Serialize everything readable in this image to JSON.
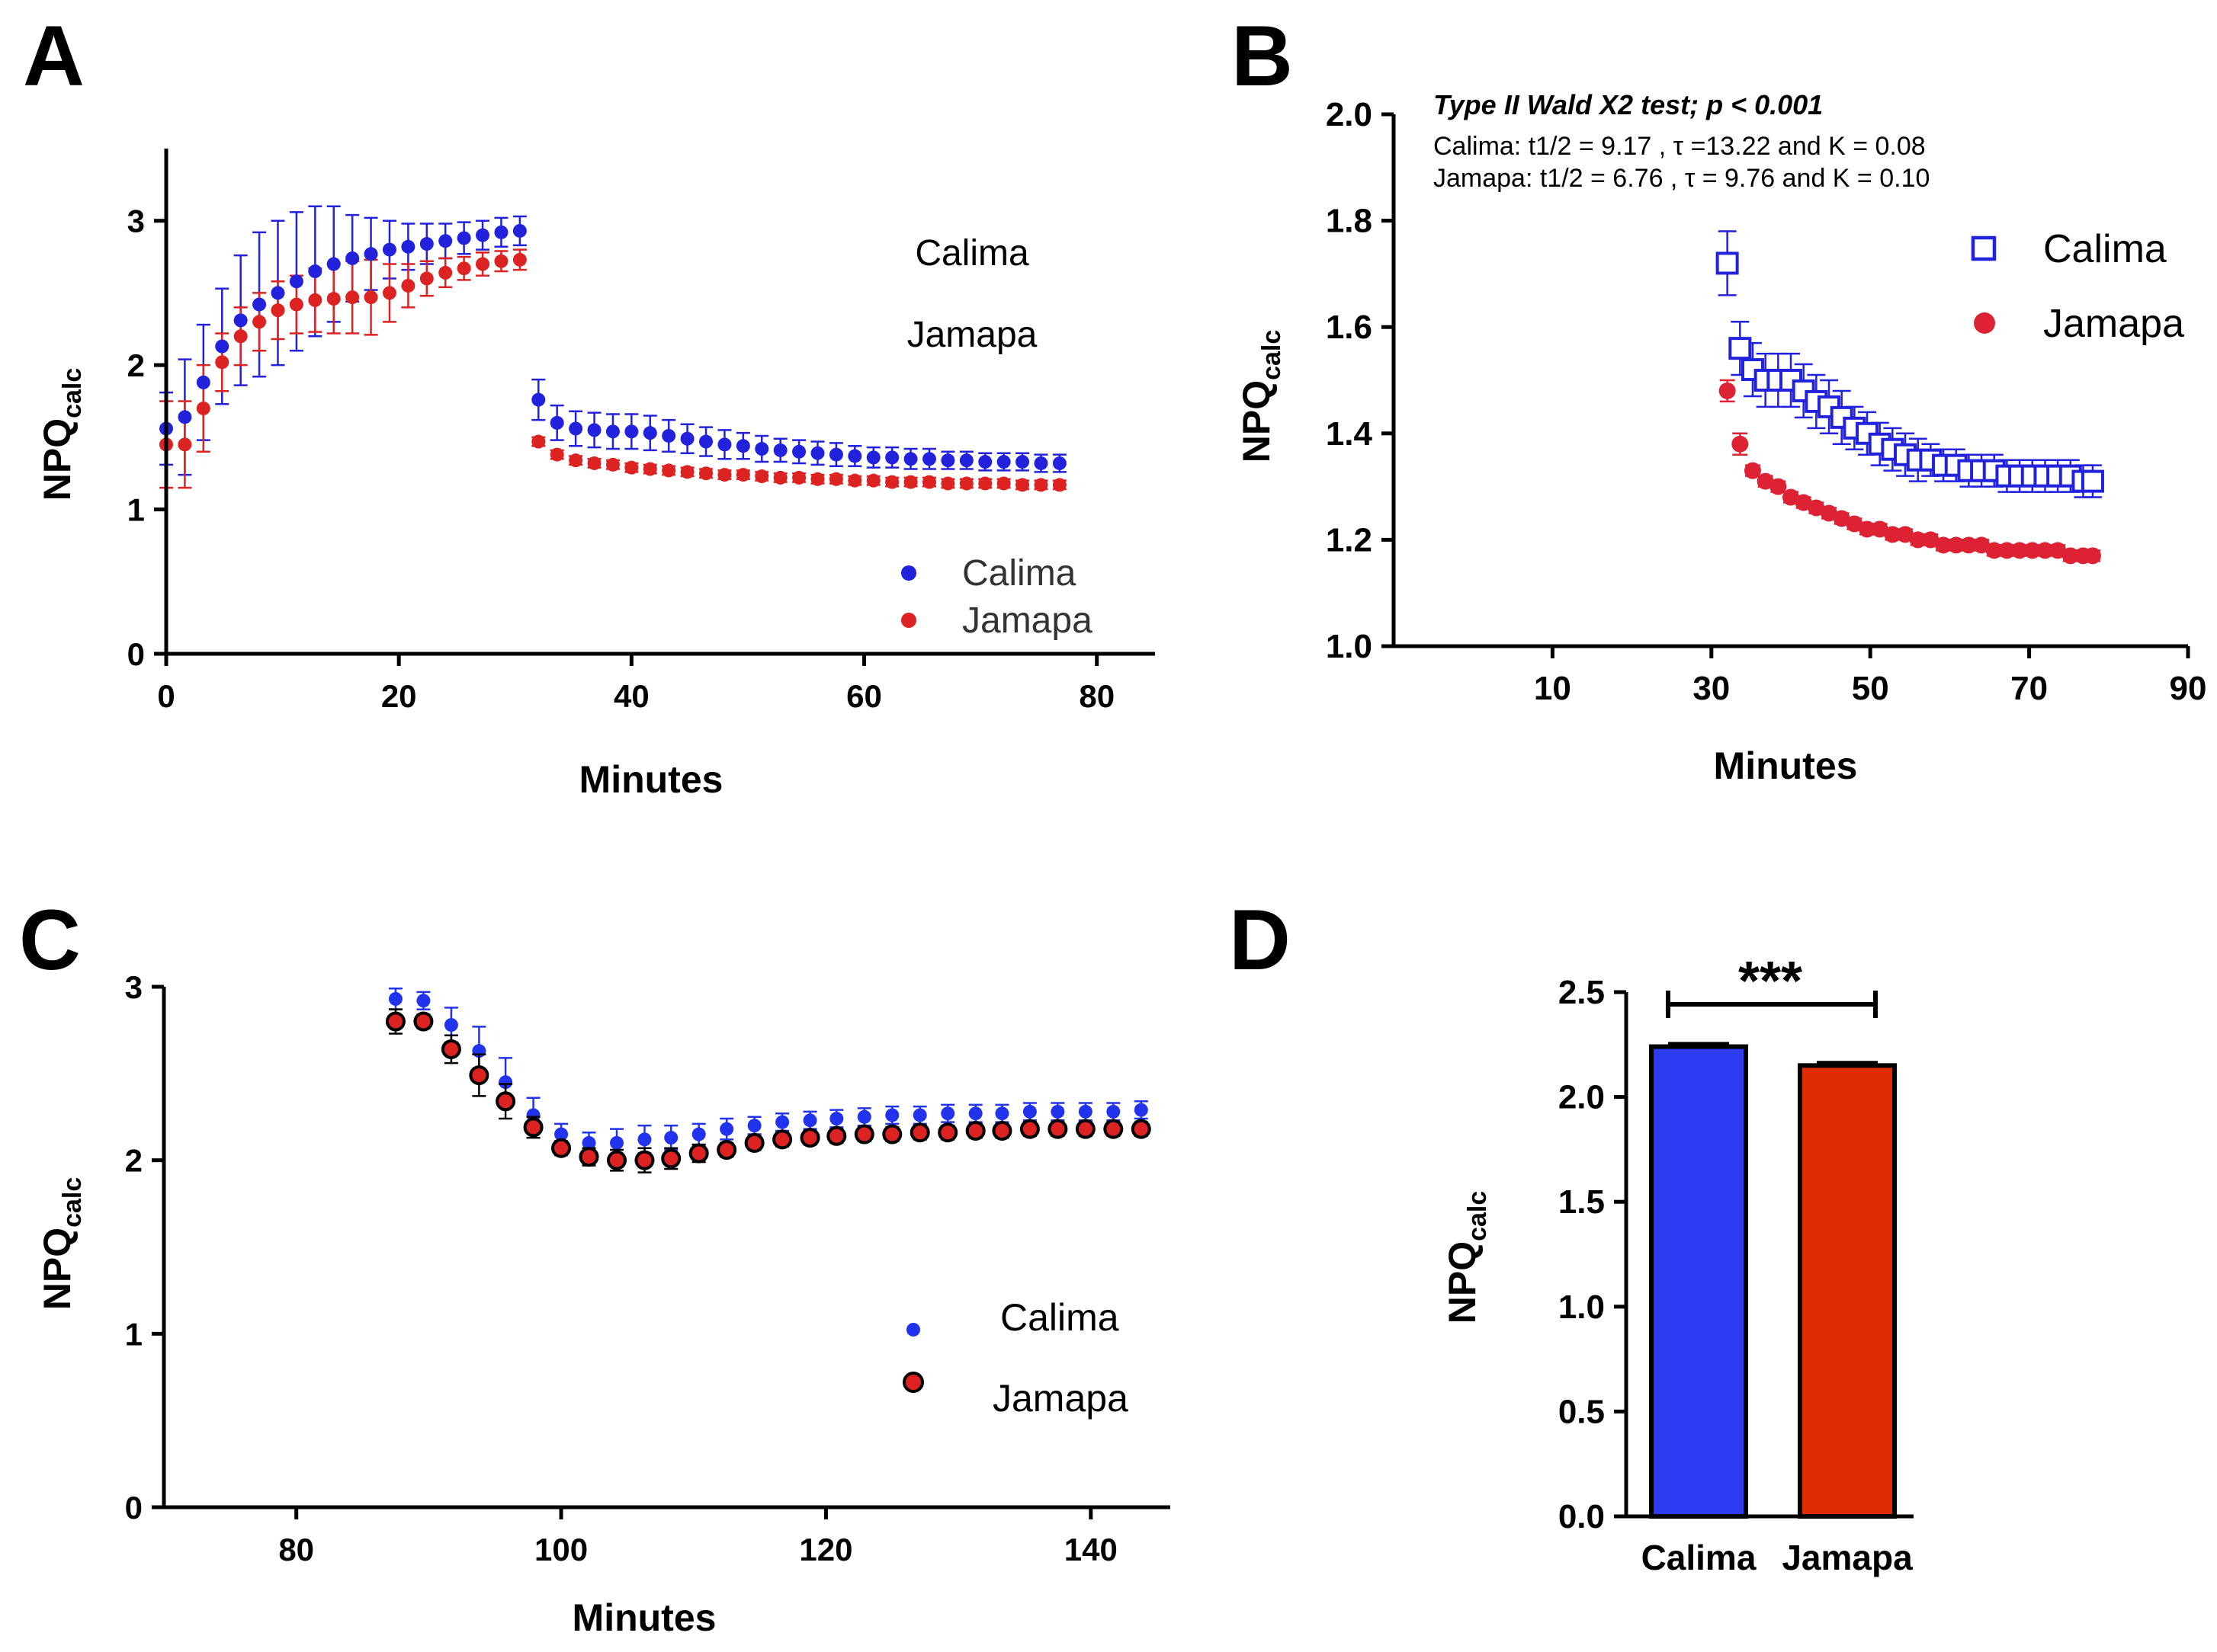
{
  "colors": {
    "calima": "#2222dd",
    "jamapa": "#dd2222",
    "calima_bar": "#2c3cf2",
    "jamapa_bar": "#e02c06",
    "axis": "#000000"
  },
  "chart_data": [
    {
      "panel": "A",
      "type": "scatter",
      "xlabel": "Minutes",
      "ylabel_main": "NPQ",
      "ylabel_sub": "calc",
      "xlim": [
        0,
        85
      ],
      "ylim": [
        0,
        3.5
      ],
      "xticks": [
        0,
        20,
        40,
        60,
        80
      ],
      "yticks": [
        0,
        1,
        2,
        3
      ],
      "text_labels": [
        "Calima",
        "Jamapa"
      ],
      "legend": [
        "Calima",
        "Jamapa"
      ],
      "series": [
        {
          "name": "Calima",
          "x": [
            0,
            1.6,
            3.2,
            4.8,
            6.4,
            8,
            9.6,
            11.2,
            12.8,
            14.4,
            16,
            17.6,
            19.2,
            20.8,
            22.4,
            24,
            25.6,
            27.2,
            28.8,
            30.4,
            32,
            33.6,
            35.2,
            36.8,
            38.4,
            40,
            41.6,
            43.2,
            44.8,
            46.4,
            48,
            49.6,
            51.2,
            52.8,
            54.4,
            56,
            57.6,
            59.2,
            60.8,
            62.4,
            64,
            65.6,
            67.2,
            68.8,
            70.4,
            72,
            73.6,
            75.2,
            76.8
          ],
          "y": [
            1.56,
            1.64,
            1.88,
            2.13,
            2.31,
            2.42,
            2.5,
            2.58,
            2.65,
            2.7,
            2.74,
            2.77,
            2.8,
            2.82,
            2.84,
            2.86,
            2.88,
            2.9,
            2.92,
            2.93,
            1.76,
            1.6,
            1.56,
            1.55,
            1.54,
            1.54,
            1.53,
            1.51,
            1.49,
            1.47,
            1.45,
            1.44,
            1.42,
            1.41,
            1.4,
            1.39,
            1.38,
            1.37,
            1.36,
            1.36,
            1.35,
            1.35,
            1.34,
            1.34,
            1.33,
            1.33,
            1.33,
            1.32,
            1.32
          ],
          "err": [
            0.25,
            0.4,
            0.4,
            0.4,
            0.45,
            0.5,
            0.5,
            0.48,
            0.45,
            0.4,
            0.3,
            0.25,
            0.2,
            0.16,
            0.14,
            0.12,
            0.11,
            0.1,
            0.1,
            0.1,
            0.14,
            0.12,
            0.12,
            0.12,
            0.12,
            0.12,
            0.12,
            0.11,
            0.1,
            0.1,
            0.1,
            0.09,
            0.09,
            0.08,
            0.08,
            0.08,
            0.08,
            0.07,
            0.07,
            0.07,
            0.07,
            0.07,
            0.06,
            0.06,
            0.06,
            0.06,
            0.06,
            0.06,
            0.06
          ]
        },
        {
          "name": "Jamapa",
          "x": [
            0,
            1.6,
            3.2,
            4.8,
            6.4,
            8,
            9.6,
            11.2,
            12.8,
            14.4,
            16,
            17.6,
            19.2,
            20.8,
            22.4,
            24,
            25.6,
            27.2,
            28.8,
            30.4,
            32,
            33.6,
            35.2,
            36.8,
            38.4,
            40,
            41.6,
            43.2,
            44.8,
            46.4,
            48,
            49.6,
            51.2,
            52.8,
            54.4,
            56,
            57.6,
            59.2,
            60.8,
            62.4,
            64,
            65.6,
            67.2,
            68.8,
            70.4,
            72,
            73.6,
            75.2,
            76.8
          ],
          "y": [
            1.45,
            1.45,
            1.7,
            2.02,
            2.2,
            2.3,
            2.38,
            2.42,
            2.45,
            2.46,
            2.47,
            2.47,
            2.5,
            2.55,
            2.6,
            2.64,
            2.67,
            2.7,
            2.72,
            2.73,
            1.47,
            1.38,
            1.34,
            1.32,
            1.31,
            1.29,
            1.28,
            1.27,
            1.26,
            1.25,
            1.24,
            1.24,
            1.23,
            1.22,
            1.22,
            1.21,
            1.21,
            1.2,
            1.2,
            1.19,
            1.19,
            1.19,
            1.18,
            1.18,
            1.18,
            1.18,
            1.17,
            1.17,
            1.17
          ],
          "err": [
            0.3,
            0.3,
            0.3,
            0.2,
            0.2,
            0.2,
            0.2,
            0.2,
            0.22,
            0.24,
            0.25,
            0.26,
            0.2,
            0.15,
            0.12,
            0.1,
            0.08,
            0.08,
            0.07,
            0.07,
            0.03,
            0.03,
            0.03,
            0.03,
            0.03,
            0.03,
            0.03,
            0.03,
            0.03,
            0.03,
            0.03,
            0.03,
            0.03,
            0.03,
            0.03,
            0.03,
            0.03,
            0.03,
            0.03,
            0.03,
            0.03,
            0.03,
            0.03,
            0.03,
            0.03,
            0.03,
            0.03,
            0.03,
            0.03
          ]
        }
      ]
    },
    {
      "panel": "B",
      "type": "scatter",
      "xlabel": "Minutes",
      "ylabel_main": "NPQ",
      "ylabel_sub": "calc",
      "xlim": [
        -10,
        90
      ],
      "ylim": [
        1.0,
        2.0
      ],
      "xticks": [
        10,
        30,
        50,
        70,
        90
      ],
      "yticks": [
        1.0,
        1.2,
        1.4,
        1.6,
        1.8,
        2.0
      ],
      "annotation_title": "Type II Wald X2 test;  p < 0.001",
      "annotation_lines": [
        "Calima: t1/2 = 9.17 , τ =13.22 and K = 0.08",
        "Jamapa: t1/2 = 6.76 , τ = 9.76 and K = 0.10"
      ],
      "legend": [
        "Calima",
        "Jamapa"
      ],
      "series": [
        {
          "name": "Calima",
          "x": [
            32,
            33.6,
            35.2,
            36.8,
            38.4,
            40,
            41.6,
            43.2,
            44.8,
            46.4,
            48,
            49.6,
            51.2,
            52.8,
            54.4,
            56,
            57.6,
            59.2,
            60.8,
            62.4,
            64,
            65.6,
            67.2,
            68.8,
            70.4,
            72,
            73.6,
            75.2,
            76.8,
            78
          ],
          "y": [
            1.72,
            1.56,
            1.52,
            1.5,
            1.5,
            1.5,
            1.48,
            1.46,
            1.45,
            1.43,
            1.41,
            1.4,
            1.38,
            1.37,
            1.36,
            1.35,
            1.35,
            1.34,
            1.34,
            1.33,
            1.33,
            1.33,
            1.32,
            1.32,
            1.32,
            1.32,
            1.32,
            1.32,
            1.31,
            1.31
          ],
          "err": [
            0.06,
            0.05,
            0.05,
            0.05,
            0.05,
            0.05,
            0.05,
            0.05,
            0.05,
            0.05,
            0.04,
            0.04,
            0.04,
            0.04,
            0.04,
            0.04,
            0.03,
            0.03,
            0.03,
            0.03,
            0.03,
            0.03,
            0.03,
            0.03,
            0.03,
            0.03,
            0.03,
            0.03,
            0.03,
            0.03
          ]
        },
        {
          "name": "Jamapa",
          "x": [
            32,
            33.6,
            35.2,
            36.8,
            38.4,
            40,
            41.6,
            43.2,
            44.8,
            46.4,
            48,
            49.6,
            51.2,
            52.8,
            54.4,
            56,
            57.6,
            59.2,
            60.8,
            62.4,
            64,
            65.6,
            67.2,
            68.8,
            70.4,
            72,
            73.6,
            75.2,
            76.8,
            78
          ],
          "y": [
            1.48,
            1.38,
            1.33,
            1.31,
            1.3,
            1.28,
            1.27,
            1.26,
            1.25,
            1.24,
            1.23,
            1.22,
            1.22,
            1.21,
            1.21,
            1.2,
            1.2,
            1.19,
            1.19,
            1.19,
            1.19,
            1.18,
            1.18,
            1.18,
            1.18,
            1.18,
            1.18,
            1.17,
            1.17,
            1.17
          ],
          "err": [
            0.02,
            0.02,
            0.01,
            0.01,
            0.01,
            0.01,
            0.01,
            0.01,
            0.01,
            0.01,
            0.01,
            0.01,
            0.01,
            0.01,
            0.01,
            0.01,
            0.01,
            0.01,
            0.01,
            0.01,
            0.01,
            0.01,
            0.01,
            0.01,
            0.01,
            0.01,
            0.01,
            0.01,
            0.01,
            0.01
          ]
        }
      ]
    },
    {
      "panel": "C",
      "type": "scatter",
      "xlabel": "Minutes",
      "ylabel_main": "NPQ",
      "ylabel_sub": "calc",
      "xlim": [
        70,
        146
      ],
      "ylim": [
        0,
        3
      ],
      "xticks": [
        80,
        100,
        120,
        140
      ],
      "yticks": [
        0,
        1,
        2,
        3
      ],
      "legend": [
        "Calima",
        "Jamapa"
      ],
      "series": [
        {
          "name": "Calima",
          "x": [
            87.5,
            89.6,
            91.7,
            93.8,
            95.8,
            97.9,
            100,
            102.1,
            104.2,
            106.3,
            108.3,
            110.4,
            112.5,
            114.6,
            116.7,
            118.8,
            120.8,
            122.9,
            125,
            127.1,
            129.2,
            131.3,
            133.3,
            135.4,
            137.5,
            139.6,
            141.7,
            143.8
          ],
          "y": [
            2.93,
            2.92,
            2.78,
            2.63,
            2.45,
            2.26,
            2.15,
            2.1,
            2.1,
            2.12,
            2.13,
            2.15,
            2.18,
            2.2,
            2.22,
            2.23,
            2.24,
            2.25,
            2.26,
            2.26,
            2.27,
            2.27,
            2.27,
            2.28,
            2.28,
            2.28,
            2.28,
            2.29
          ],
          "err": [
            0.06,
            0.05,
            0.1,
            0.14,
            0.14,
            0.1,
            0.06,
            0.06,
            0.08,
            0.08,
            0.07,
            0.06,
            0.06,
            0.05,
            0.05,
            0.05,
            0.05,
            0.05,
            0.05,
            0.05,
            0.05,
            0.05,
            0.05,
            0.05,
            0.05,
            0.05,
            0.05,
            0.05
          ]
        },
        {
          "name": "Jamapa",
          "x": [
            87.5,
            89.6,
            91.7,
            93.8,
            95.8,
            97.9,
            100,
            102.1,
            104.2,
            106.3,
            108.3,
            110.4,
            112.5,
            114.6,
            116.7,
            118.8,
            120.8,
            122.9,
            125,
            127.1,
            129.2,
            131.3,
            133.3,
            135.4,
            137.5,
            139.6,
            141.7,
            143.8
          ],
          "y": [
            2.8,
            2.8,
            2.64,
            2.49,
            2.34,
            2.19,
            2.07,
            2.02,
            2.0,
            2.0,
            2.01,
            2.04,
            2.06,
            2.1,
            2.12,
            2.13,
            2.14,
            2.15,
            2.15,
            2.16,
            2.16,
            2.17,
            2.17,
            2.18,
            2.18,
            2.18,
            2.18,
            2.18
          ],
          "err": [
            0.07,
            0.04,
            0.08,
            0.12,
            0.1,
            0.06,
            0.04,
            0.05,
            0.06,
            0.07,
            0.06,
            0.05,
            0.04,
            0.04,
            0.04,
            0.04,
            0.04,
            0.04,
            0.04,
            0.04,
            0.04,
            0.04,
            0.04,
            0.04,
            0.04,
            0.04,
            0.04,
            0.04
          ]
        }
      ]
    },
    {
      "panel": "D",
      "type": "bar",
      "xlabel": "",
      "ylabel_main": "NPQ",
      "ylabel_sub": "calc",
      "ylim": [
        0.0,
        2.5
      ],
      "yticks": [
        "0.0",
        "0.5",
        "1.0",
        "1.5",
        "2.0",
        "2.5"
      ],
      "categories": [
        "Calima",
        "Jamapa"
      ],
      "values": [
        2.24,
        2.15
      ],
      "err": [
        0.015,
        0.015
      ],
      "significance": "***"
    }
  ]
}
